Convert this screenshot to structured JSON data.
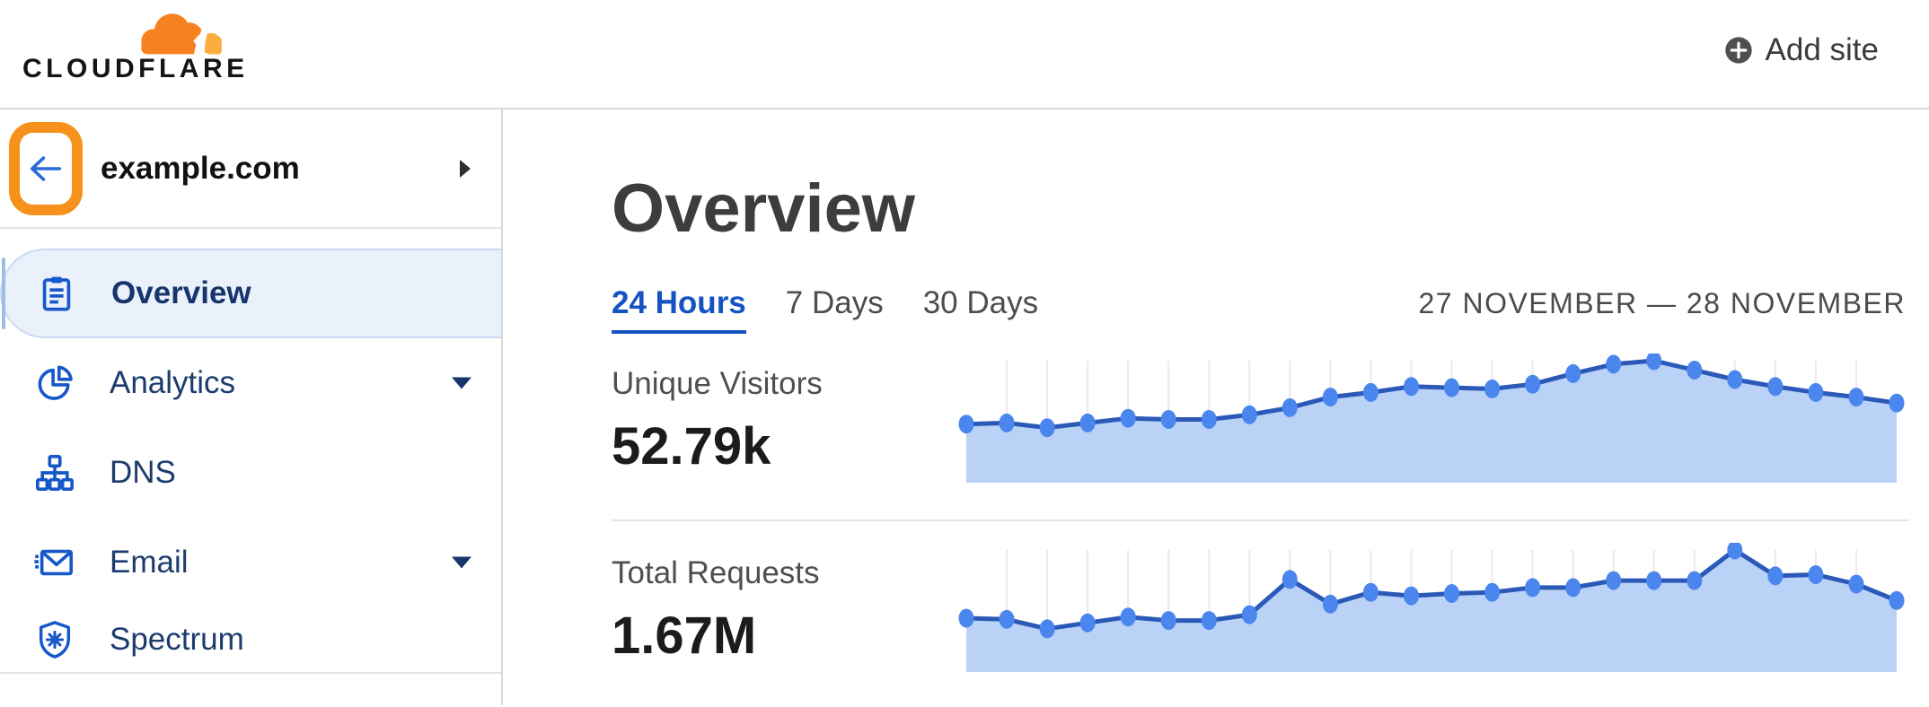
{
  "header": {
    "logo_text": "CLOUDFLARE",
    "add_site_label": "Add site"
  },
  "sidebar": {
    "site_name": "example.com",
    "nav": [
      {
        "label": "Overview",
        "icon": "clipboard-icon",
        "active": true,
        "expandable": false
      },
      {
        "label": "Analytics",
        "icon": "pie-chart-icon",
        "active": false,
        "expandable": true
      },
      {
        "label": "DNS",
        "icon": "sitemap-icon",
        "active": false,
        "expandable": false
      },
      {
        "label": "Email",
        "icon": "email-icon",
        "active": false,
        "expandable": true
      },
      {
        "label": "Spectrum",
        "icon": "shield-spectrum-icon",
        "active": false,
        "expandable": false
      }
    ]
  },
  "main": {
    "page_title": "Overview",
    "tabs": [
      {
        "label": "24 Hours",
        "active": true
      },
      {
        "label": "7 Days",
        "active": false
      },
      {
        "label": "30 Days",
        "active": false
      }
    ],
    "date_range": "27 NOVEMBER — 28 NOVEMBER"
  },
  "chart_data": [
    {
      "type": "area",
      "title": "Unique Visitors",
      "total": "52.79k",
      "points": 24,
      "tick_labels": "none (unlabeled sparkline, vertical gridlines only)",
      "relative_values": [
        0.46,
        0.47,
        0.43,
        0.47,
        0.51,
        0.5,
        0.5,
        0.54,
        0.6,
        0.69,
        0.73,
        0.78,
        0.77,
        0.76,
        0.8,
        0.89,
        0.97,
        1.0,
        0.92,
        0.84,
        0.78,
        0.73,
        0.69,
        0.64
      ],
      "line_color": "#2b59b8",
      "dot_color": "#4a86ee",
      "fill_color": "#b9d2f6",
      "grid_color": "#e9e9ef",
      "legend": "none"
    },
    {
      "type": "area",
      "title": "Total Requests",
      "total": "1.67M",
      "points": 24,
      "tick_labels": "none (unlabeled sparkline, vertical gridlines only)",
      "relative_values": [
        0.42,
        0.41,
        0.33,
        0.38,
        0.43,
        0.4,
        0.4,
        0.45,
        0.75,
        0.54,
        0.64,
        0.61,
        0.63,
        0.64,
        0.68,
        0.68,
        0.74,
        0.74,
        0.74,
        1.0,
        0.78,
        0.79,
        0.71,
        0.57
      ],
      "line_color": "#2b59b8",
      "dot_color": "#4a86ee",
      "fill_color": "#b9d2f6",
      "grid_color": "#e9e9ef",
      "legend": "none"
    }
  ],
  "colors": {
    "brand_orange": "#f6821f",
    "brand_flare": "#fbad41",
    "annotation_orange": "#f6921c",
    "link_blue": "#1553c2",
    "nav_icon_blue": "#1758c8",
    "nav_text_navy": "#1d3c6e",
    "active_pill_bg": "#eaf1fb",
    "divider_gray": "#d9d9d9"
  }
}
